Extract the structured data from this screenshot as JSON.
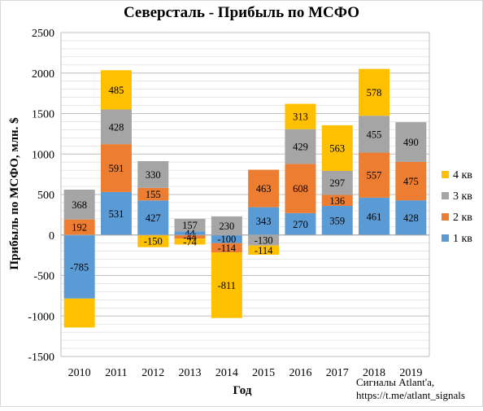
{
  "colors": {
    "q1": "#5B9BD5",
    "q2": "#ED7D31",
    "q3": "#A5A5A5",
    "q4": "#FFC000",
    "grid": "#D9D9D9",
    "axis": "#BFBFBF",
    "frame": "#7F7F7F"
  },
  "watermark": {
    "line1": "Сигналы Atlant'a,",
    "line2": "https://t.me/atlant_signals"
  },
  "chart_data": {
    "type": "bar",
    "stacked": true,
    "title": "Северсталь - Прибыль по МСФО",
    "xlabel": "Год",
    "ylabel": "Прибыль по МСФО, млн. $",
    "ylim": [
      -1500,
      2500
    ],
    "yticks": [
      -1500,
      -1000,
      -500,
      0,
      500,
      1000,
      1500,
      2000,
      2500
    ],
    "grid": true,
    "legend_position": "right",
    "categories": [
      "2010",
      "2011",
      "2012",
      "2013",
      "2014",
      "2015",
      "2016",
      "2017",
      "2018",
      "2019"
    ],
    "series": [
      {
        "name": "1 кв",
        "color_key": "q1",
        "values": [
          -785,
          531,
          427,
          44,
          -100,
          343,
          270,
          359,
          461,
          428
        ]
      },
      {
        "name": "2 кв",
        "color_key": "q2",
        "values": [
          192,
          591,
          155,
          -44,
          -114,
          463,
          608,
          136,
          557,
          475
        ]
      },
      {
        "name": "3 кв",
        "color_key": "q3",
        "values": [
          368,
          428,
          330,
          157,
          230,
          -130,
          429,
          297,
          455,
          490
        ]
      },
      {
        "name": "4 кв",
        "color_key": "q4",
        "values": [
          -357,
          485,
          -150,
          -74,
          -811,
          -114,
          313,
          563,
          578,
          null
        ]
      }
    ]
  }
}
